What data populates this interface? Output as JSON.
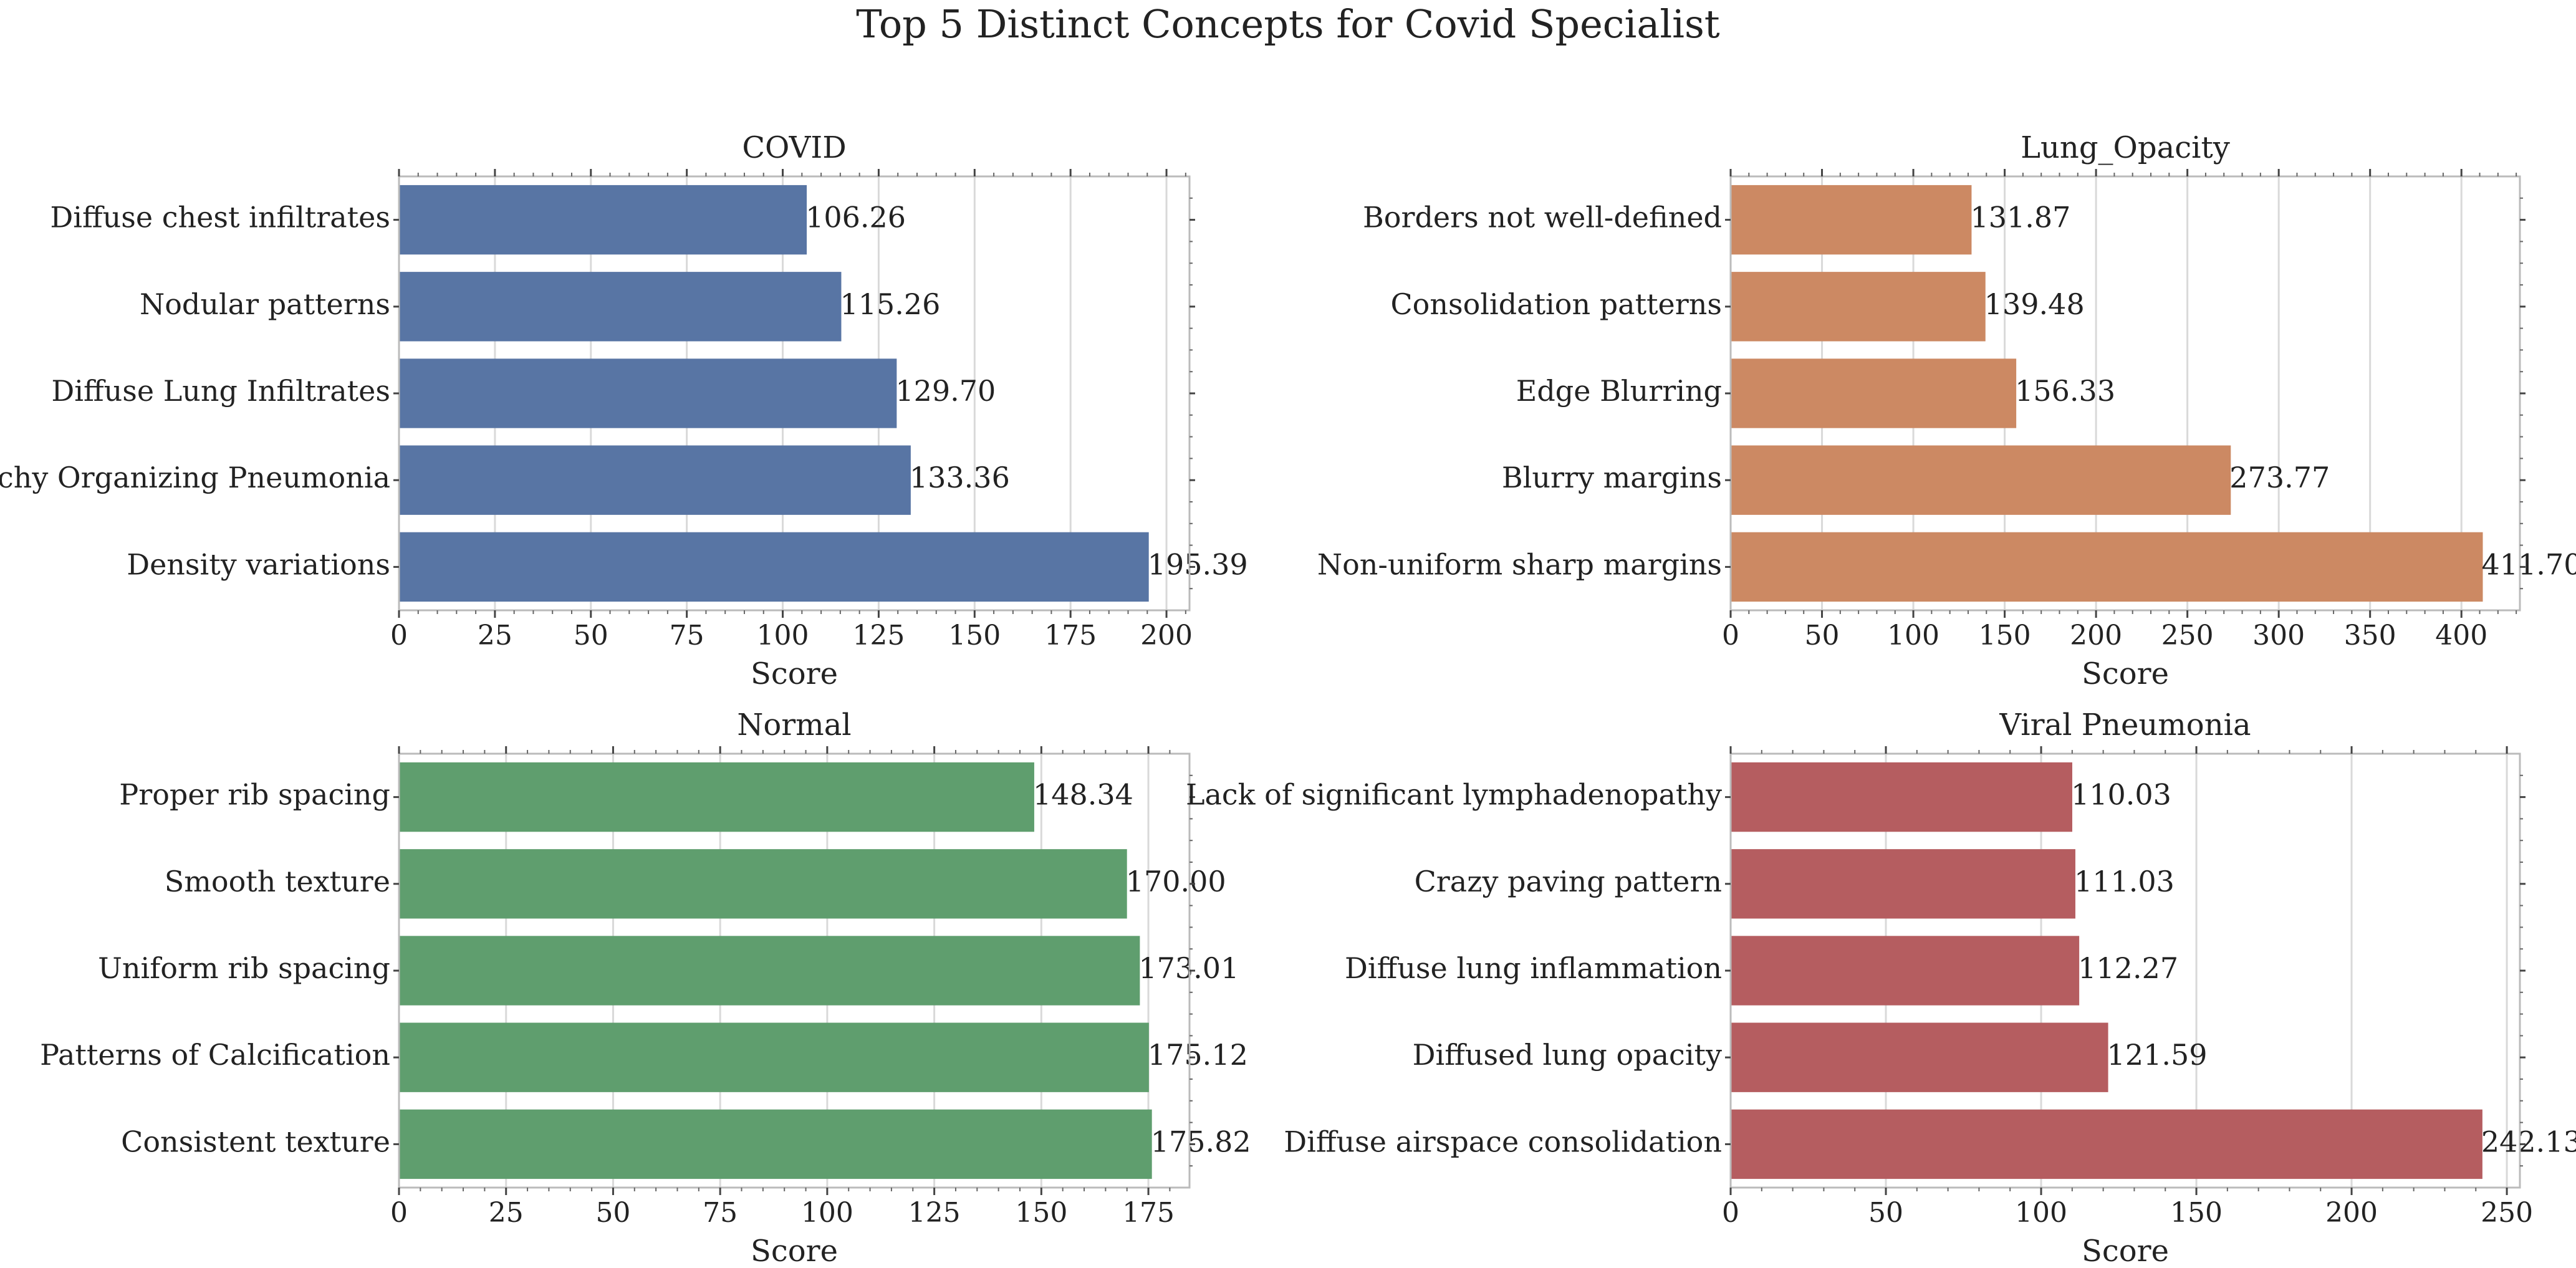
{
  "figure": {
    "title": "Top 5 Distinct Concepts for Covid Specialist"
  },
  "chart_data": [
    {
      "type": "bar",
      "orientation": "horizontal",
      "title": "COVID",
      "xlabel": "Score",
      "ylabel": "",
      "xlim": [
        0,
        206
      ],
      "xticks": [
        0,
        25,
        50,
        75,
        100,
        125,
        150,
        175,
        200
      ],
      "grid": true,
      "color": "#5875a4",
      "categories": [
        "Diffuse chest infiltrates",
        "Nodular patterns",
        "Diffuse Lung Infiltrates",
        "Patchy Organizing Pneumonia",
        "Density variations"
      ],
      "values": [
        106.26,
        115.26,
        129.7,
        133.36,
        195.39
      ],
      "value_labels": [
        "106.26",
        "115.26",
        "129.70",
        "133.36",
        "195.39"
      ]
    },
    {
      "type": "bar",
      "orientation": "horizontal",
      "title": "Lung_Opacity",
      "xlabel": "Score",
      "ylabel": "",
      "xlim": [
        0,
        432
      ],
      "xticks": [
        0,
        50,
        100,
        150,
        200,
        250,
        300,
        350,
        400
      ],
      "grid": true,
      "color": "#cc8963",
      "categories": [
        "Borders not well-defined",
        "Consolidation patterns",
        "Edge Blurring",
        "Blurry margins",
        "Non-uniform sharp margins"
      ],
      "values": [
        131.87,
        139.48,
        156.33,
        273.77,
        411.7
      ],
      "value_labels": [
        "131.87",
        "139.48",
        "156.33",
        "273.77",
        "411.70"
      ]
    },
    {
      "type": "bar",
      "orientation": "horizontal",
      "title": "Normal",
      "xlabel": "Score",
      "ylabel": "",
      "xlim": [
        0,
        184.6
      ],
      "xticks": [
        0,
        25,
        50,
        75,
        100,
        125,
        150,
        175
      ],
      "grid": true,
      "color": "#5f9e6e",
      "categories": [
        "Proper rib spacing",
        "Smooth texture",
        "Uniform rib spacing",
        "Patterns of Calcification",
        "Consistent texture"
      ],
      "values": [
        148.34,
        170.0,
        173.01,
        175.12,
        175.82
      ],
      "value_labels": [
        "148.34",
        "170.00",
        "173.01",
        "175.12",
        "175.82"
      ]
    },
    {
      "type": "bar",
      "orientation": "horizontal",
      "title": "Viral Pneumonia",
      "xlabel": "Score",
      "ylabel": "",
      "xlim": [
        0,
        254.2
      ],
      "xticks": [
        0,
        50,
        100,
        150,
        200,
        250
      ],
      "grid": true,
      "color": "#b55d60",
      "categories": [
        "Lack of significant lymphadenopathy",
        "Crazy paving pattern",
        "Diffuse lung inflammation",
        "Diffused lung opacity",
        "Diffuse airspace consolidation"
      ],
      "values": [
        110.03,
        111.03,
        112.27,
        121.59,
        242.13
      ],
      "value_labels": [
        "110.03",
        "111.03",
        "112.27",
        "121.59",
        "242.13"
      ]
    }
  ]
}
